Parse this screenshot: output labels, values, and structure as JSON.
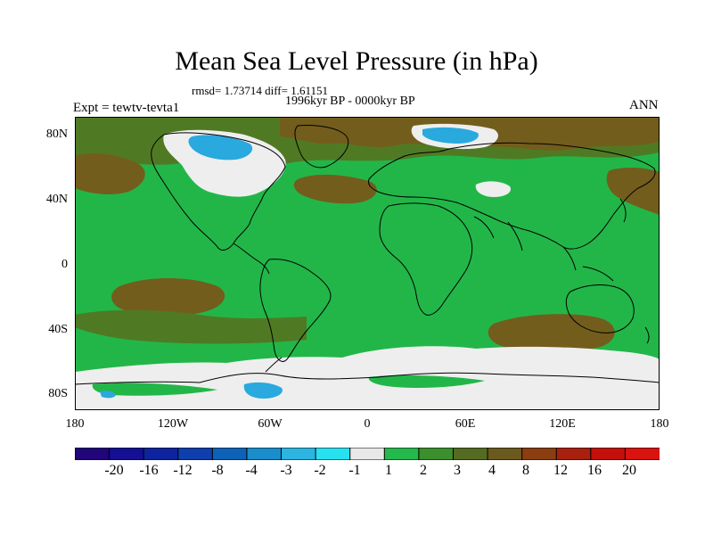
{
  "title": "Mean Sea Level Pressure (in hPa)",
  "stats": "rmsd= 1.73714  diff= 1.61151",
  "period": "1996kyr BP - 0000kyr BP",
  "experiment": "Expt = tewtv-tevta1",
  "season": "ANN",
  "lat_labels": [
    "80N",
    "40N",
    "0",
    "40S",
    "80S"
  ],
  "lon_labels": [
    "180",
    "120W",
    "60W",
    "0",
    "60E",
    "120E",
    "180"
  ],
  "colorbar": {
    "labels": [
      "-20",
      "-16",
      "-12",
      "-8",
      "-4",
      "-3",
      "-2",
      "-1",
      "1",
      "2",
      "3",
      "4",
      "8",
      "12",
      "16",
      "20"
    ],
    "colors": [
      "#21057a",
      "#150f94",
      "#0d249e",
      "#0f3fac",
      "#0d62b8",
      "#1a8dcb",
      "#2bb5e0",
      "#28e0ef",
      "#e8e8e8",
      "#25b94c",
      "#3c8f2d",
      "#556b22",
      "#6b5a1e",
      "#8a3e12",
      "#a8200e",
      "#c4100a",
      "#d9130f"
    ]
  },
  "colors": {
    "main_green": "#22b649",
    "olive": "#4f7a23",
    "brown": "#735d1c",
    "white": "#eeeeee",
    "blue": "#29a9dd"
  }
}
